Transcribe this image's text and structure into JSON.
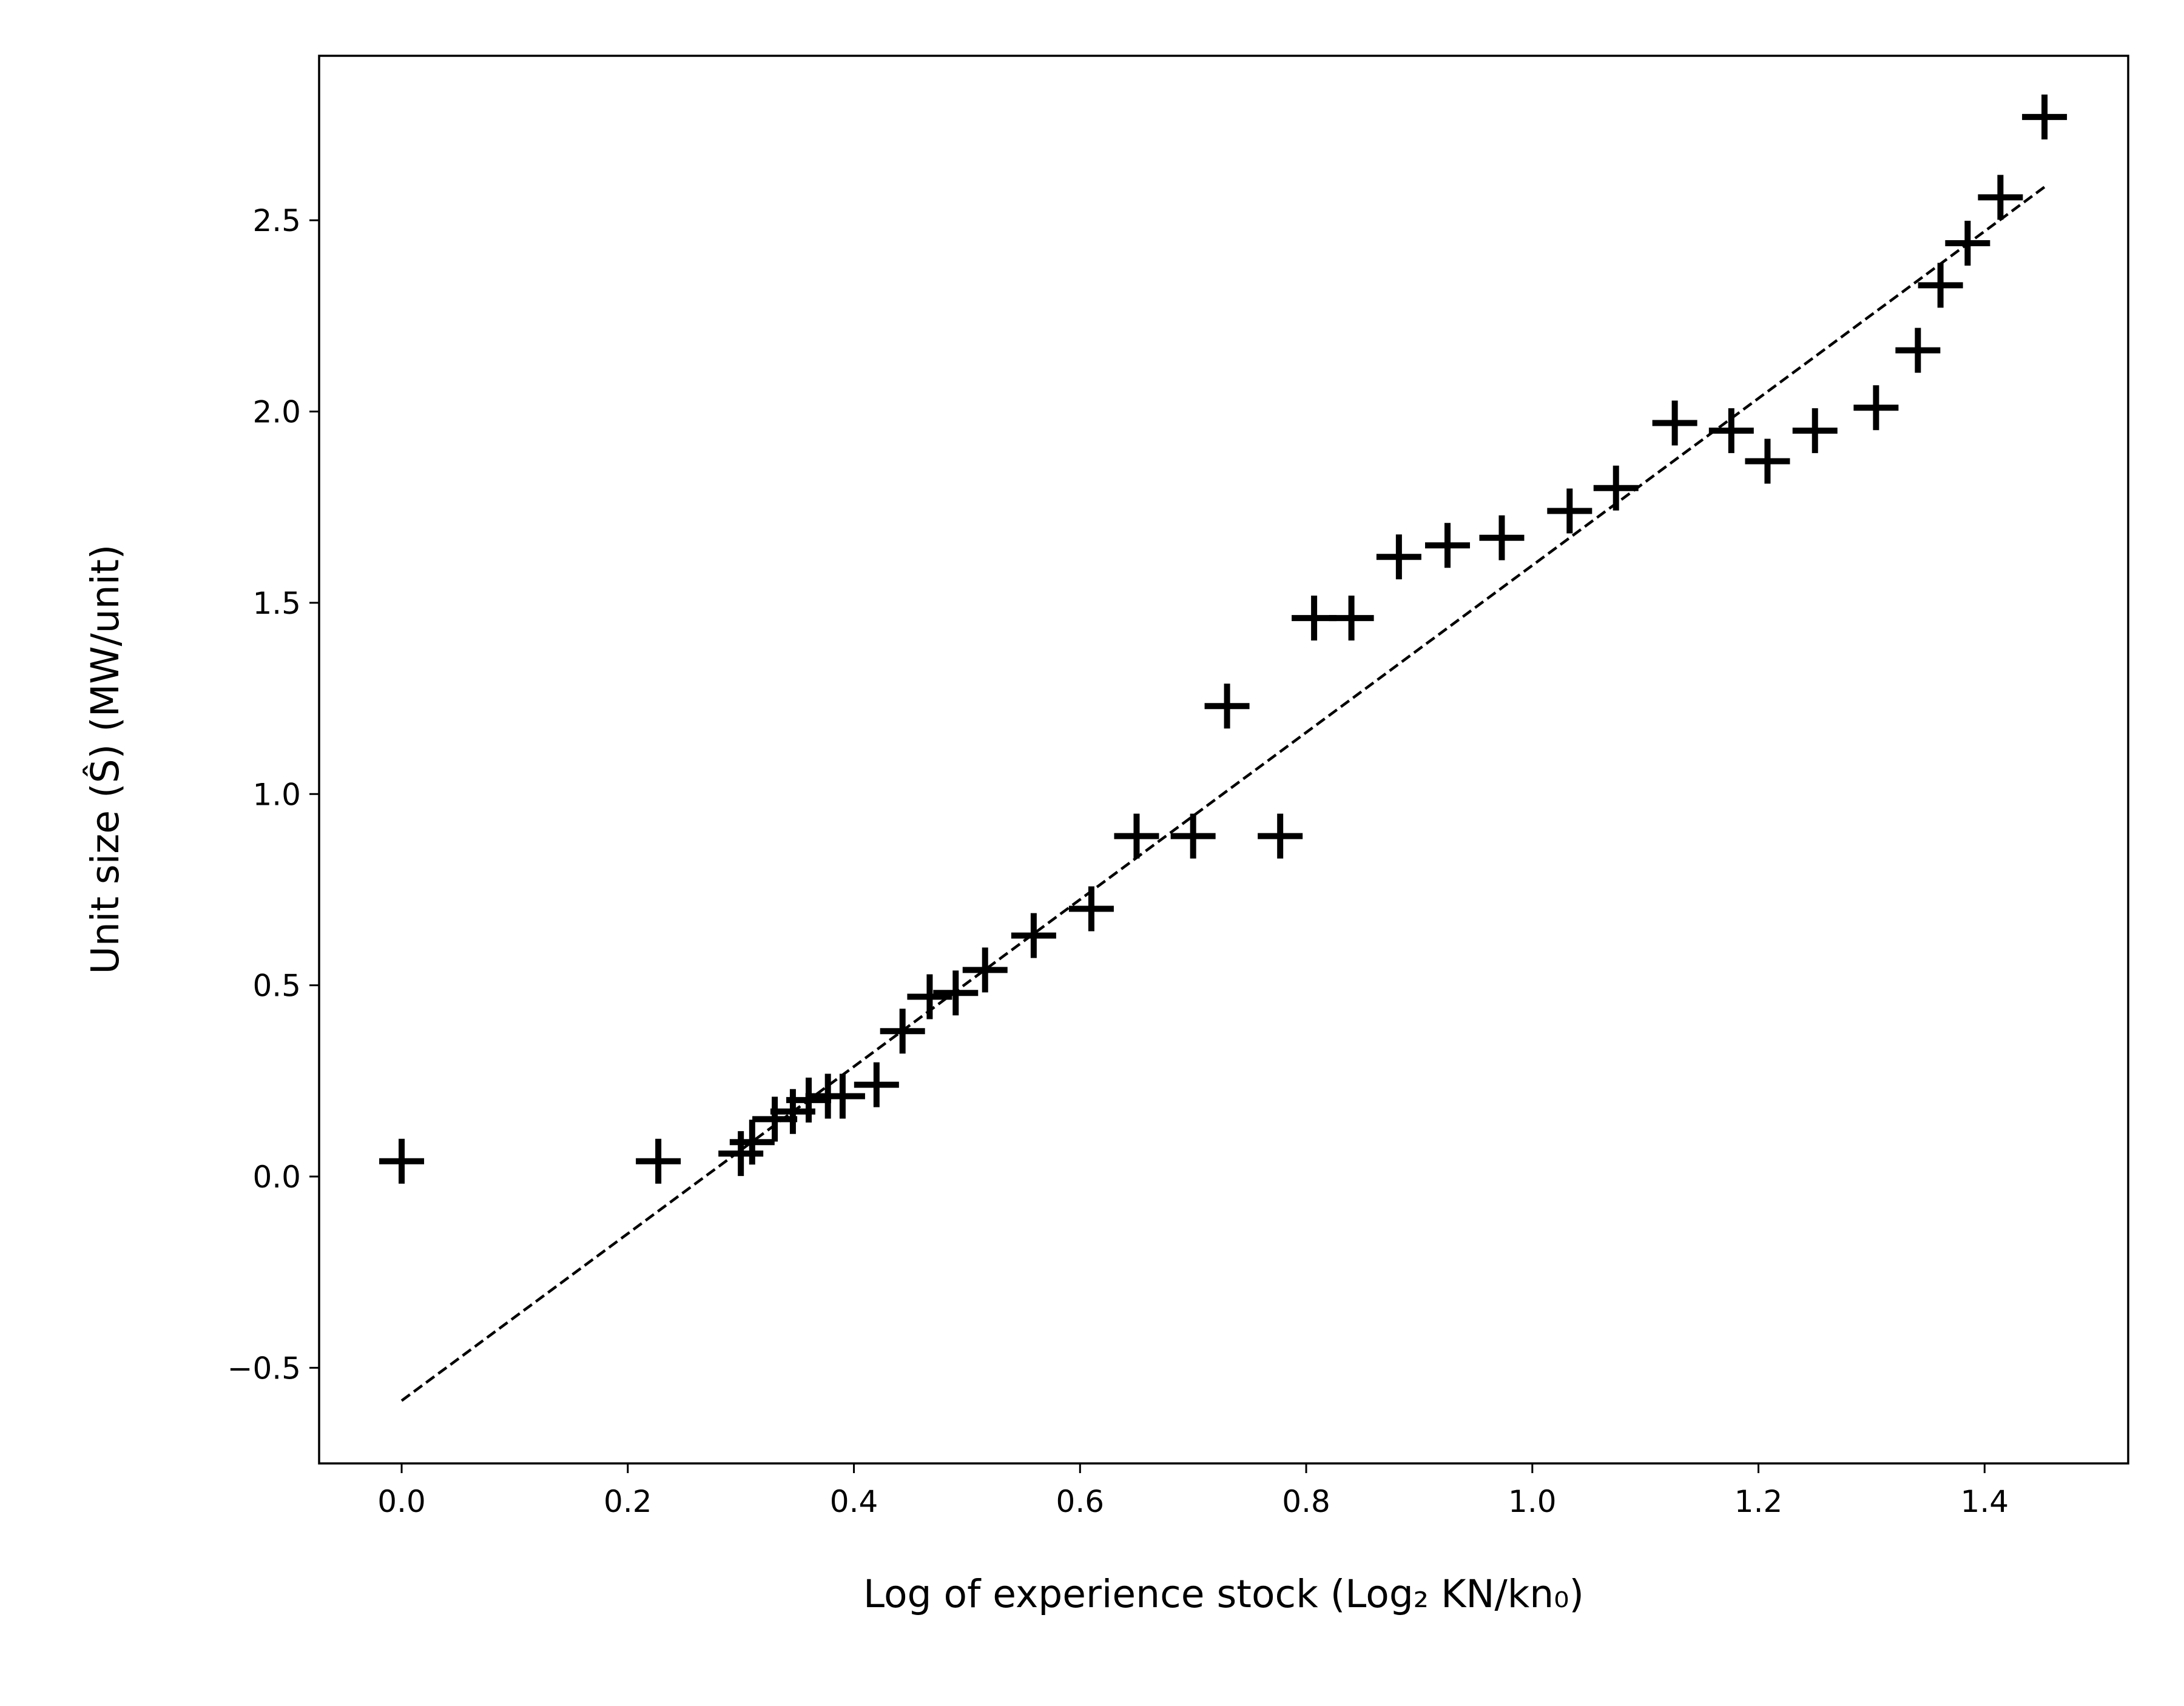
{
  "chart_data": {
    "type": "scatter",
    "xlabel": "Log of experience stock (Log₂ KN/kn₀)",
    "ylabel": "Unit size (Ŝ) (MW/unit)",
    "xlim": [
      -0.073,
      1.527
    ],
    "ylim": [
      -0.75,
      2.93
    ],
    "xticks": [
      {
        "value": 0,
        "label": "0.0"
      },
      0.2,
      0.4,
      0.6,
      0.8,
      {
        "value": 1,
        "label": "1.0"
      },
      1.2,
      1.4
    ],
    "yticks": [
      {
        "value": -0.5,
        "label": "−0.5"
      },
      {
        "value": 0,
        "label": "0.0"
      },
      0.5,
      {
        "value": 1,
        "label": "1.0"
      },
      1.5,
      {
        "value": 2,
        "label": "2.0"
      },
      2.5
    ],
    "grid": false,
    "series": [
      {
        "color": "#000000",
        "marker": "plus",
        "x": [
          0,
          0.227,
          0.3,
          0.31,
          0.33,
          0.346,
          0.36,
          0.377,
          0.39,
          0.42,
          0.443,
          0.467,
          0.49,
          0.516,
          0.559,
          0.61,
          0.65,
          0.7,
          0.73,
          0.777,
          0.807,
          0.84,
          0.882,
          0.925,
          0.973,
          1.033,
          1.074,
          1.126,
          1.176,
          1.208,
          1.25,
          1.304,
          1.341,
          1.361,
          1.385,
          1.414,
          1.453
        ],
        "values": [
          0.04,
          0.04,
          0.06,
          0.09,
          0.15,
          0.17,
          0.2,
          0.21,
          0.21,
          0.24,
          0.38,
          0.47,
          0.48,
          0.54,
          0.63,
          0.7,
          0.89,
          0.89,
          1.23,
          0.89,
          1.46,
          1.46,
          1.62,
          1.65,
          1.67,
          1.74,
          1.8,
          1.97,
          1.95,
          1.87,
          1.95,
          2.01,
          2.16,
          2.33,
          2.44,
          2.56,
          2.77
        ]
      },
      {
        "color": "#000000",
        "line_style": "dashed",
        "x": [
          0,
          1.453
        ],
        "values": [
          -0.586,
          2.587
        ]
      }
    ]
  }
}
